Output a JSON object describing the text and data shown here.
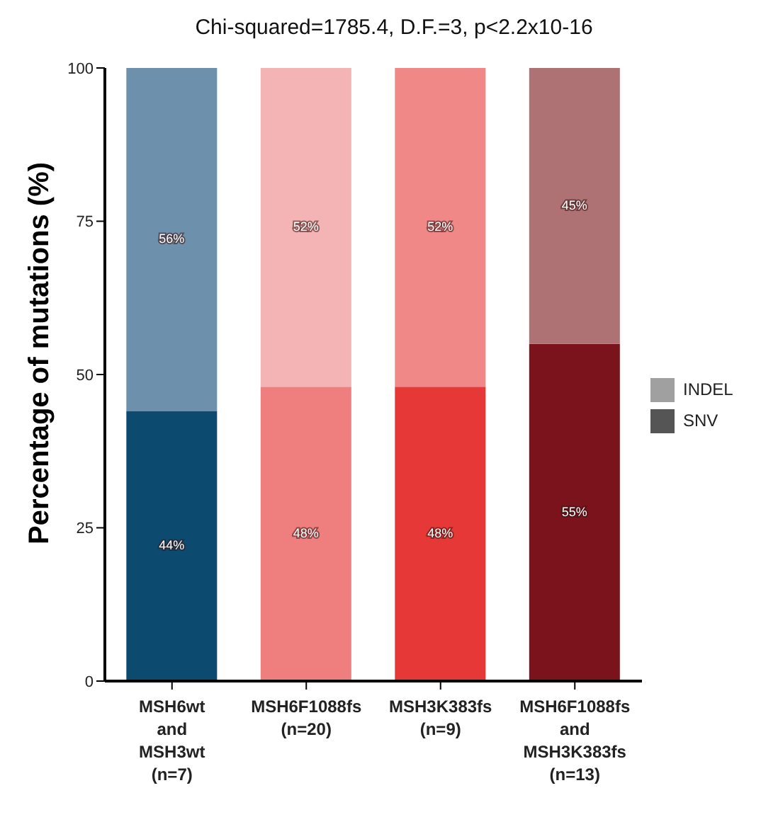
{
  "chart_data": {
    "type": "bar",
    "title": "Chi-squared=1785.4, D.F.=3, p<2.2x10-16",
    "ylabel": "Percentage of mutations (%)",
    "categories": [
      "MSH6wt\nand\nMSH3wt\n(n=7)",
      "MSH6F1088fs\n(n=20)",
      "MSH3K383fs\n(n=9)",
      "MSH6F1088fs\nand\nMSH3K383fs\n(n=13)"
    ],
    "series": [
      {
        "name": "SNV",
        "color": "#555555",
        "colors": [
          "#0d4a70",
          "#ef7f7f",
          "#e73838",
          "#7a131c"
        ],
        "values": [
          44,
          48,
          48,
          55
        ],
        "value_labels": [
          "44%",
          "48%",
          "48%",
          "55%"
        ]
      },
      {
        "name": "INDEL",
        "color": "#a0a0a0",
        "colors": [
          "#6d91ad",
          "#f4b3b4",
          "#f08888",
          "#ae7174"
        ],
        "values": [
          56,
          52,
          52,
          45
        ],
        "value_labels": [
          "56%",
          "52%",
          "52%",
          "45%"
        ]
      }
    ],
    "stacked": true,
    "ylim": [
      0,
      100
    ],
    "yticks": [
      0,
      25,
      50,
      75,
      100
    ],
    "grid": false,
    "legend": "right"
  }
}
